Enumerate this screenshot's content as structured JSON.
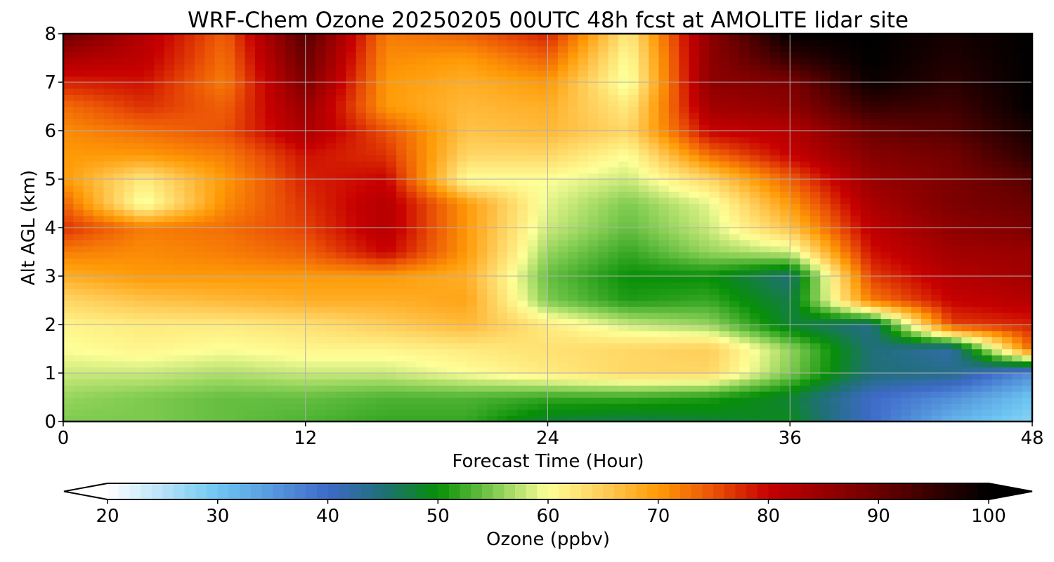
{
  "chart_data": {
    "type": "heatmap",
    "title": "WRF-Chem Ozone  20250205 00UTC 48h fcst at AMOLITE lidar site",
    "xlabel": "Forecast Time (Hour)",
    "ylabel": "Alt AGL (km)",
    "xlim": [
      0,
      48
    ],
    "ylim": [
      0,
      8
    ],
    "xticks": [
      0,
      12,
      24,
      36,
      48
    ],
    "yticks": [
      0,
      1,
      2,
      3,
      4,
      5,
      6,
      7,
      8
    ],
    "grid": true,
    "colorbar": {
      "label": "Ozone  (ppbv)",
      "min": 20,
      "max": 100,
      "ticks": [
        20,
        30,
        40,
        50,
        60,
        70,
        80,
        90,
        100
      ],
      "extend": "both",
      "stops": [
        [
          20,
          "#ffffff"
        ],
        [
          30,
          "#6ec6f2"
        ],
        [
          40,
          "#3e6ac8"
        ],
        [
          45,
          "#1f6f78"
        ],
        [
          50,
          "#078f07"
        ],
        [
          55,
          "#7dca4f"
        ],
        [
          60,
          "#feff98"
        ],
        [
          65,
          "#ffcd59"
        ],
        [
          70,
          "#ff9a06"
        ],
        [
          75,
          "#eb5206"
        ],
        [
          80,
          "#c70000"
        ],
        [
          90,
          "#6a0000"
        ],
        [
          100,
          "#000000"
        ]
      ]
    },
    "x": [
      0,
      4,
      8,
      12,
      16,
      20,
      24,
      28,
      32,
      36,
      40,
      44,
      48
    ],
    "y": [
      0,
      0.5,
      1,
      1.5,
      2,
      2.5,
      3,
      3.5,
      4,
      4.5,
      5,
      5.5,
      6,
      6.5,
      7,
      7.5,
      8
    ],
    "z": [
      [
        55,
        55,
        54,
        53,
        52,
        52,
        48,
        47,
        48,
        49,
        40,
        32,
        28
      ],
      [
        56,
        55,
        54,
        54,
        53,
        53,
        52,
        52,
        51,
        48,
        40,
        36,
        30
      ],
      [
        58,
        58,
        57,
        58,
        58,
        60,
        62,
        64,
        64,
        55,
        45,
        44,
        36
      ],
      [
        60,
        61,
        60,
        61,
        61,
        62,
        63,
        64,
        65,
        56,
        45,
        42,
        74
      ],
      [
        61,
        62,
        62,
        63,
        65,
        67,
        62,
        58,
        56,
        48,
        44,
        76,
        78
      ],
      [
        64,
        66,
        67,
        68,
        68,
        69,
        55,
        51,
        52,
        47,
        72,
        80,
        82
      ],
      [
        68,
        70,
        70,
        70,
        70,
        68,
        54,
        50,
        50,
        45,
        76,
        82,
        84
      ],
      [
        72,
        71,
        72,
        74,
        80,
        70,
        56,
        52,
        56,
        58,
        79,
        84,
        85
      ],
      [
        77,
        72,
        73,
        76,
        82,
        70,
        58,
        54,
        58,
        66,
        81,
        86,
        88
      ],
      [
        74,
        59,
        71,
        77,
        82,
        70,
        59,
        55,
        59,
        70,
        83,
        88,
        90
      ],
      [
        70,
        62,
        70,
        78,
        80,
        60,
        60,
        58,
        64,
        74,
        85,
        88,
        92
      ],
      [
        70,
        70,
        72,
        79,
        77,
        64,
        64,
        60,
        73,
        80,
        87,
        89,
        96
      ],
      [
        71,
        73,
        75,
        83,
        75,
        66,
        67,
        64,
        80,
        82,
        90,
        92,
        98
      ],
      [
        73,
        77,
        74,
        85,
        70,
        67,
        68,
        62,
        84,
        86,
        95,
        94,
        100
      ],
      [
        78,
        79,
        72,
        88,
        70,
        68,
        70,
        59,
        86,
        88,
        99,
        96,
        100
      ],
      [
        83,
        81,
        73,
        90,
        71,
        70,
        74,
        60,
        86,
        95,
        100,
        97,
        100
      ],
      [
        90,
        82,
        74,
        92,
        72,
        74,
        78,
        62,
        86,
        100,
        100,
        98,
        100
      ]
    ]
  }
}
